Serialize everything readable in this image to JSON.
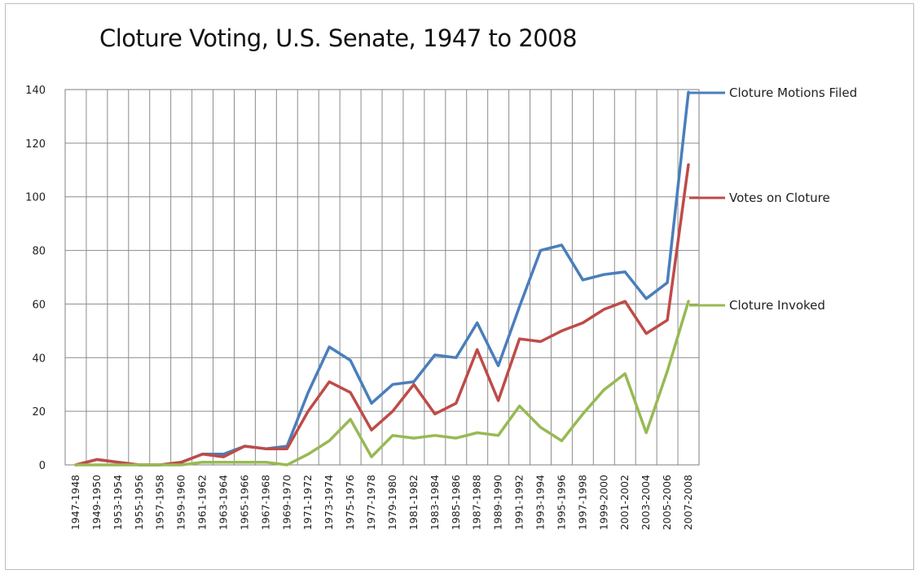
{
  "chart_data": {
    "type": "line",
    "title": "Cloture Voting, U.S. Senate, 1947 to 2008",
    "xlabel": "",
    "ylabel": "",
    "ylim": [
      0,
      140
    ],
    "yticks": [
      0,
      20,
      40,
      60,
      80,
      100,
      120,
      140
    ],
    "grid": true,
    "legend_position": "right",
    "categories": [
      "1947-1948",
      "1949-1950",
      "1953-1954",
      "1955-1956",
      "1957-1958",
      "1959-1960",
      "1961-1962",
      "1963-1964",
      "1965-1966",
      "1967-1968",
      "1969-1970",
      "1971-1972",
      "1973-1974",
      "1975-1976",
      "1977-1978",
      "1979-1980",
      "1981-1982",
      "1983-1984",
      "1985-1986",
      "1987-1988",
      "1989-1990",
      "1991-1992",
      "1993-1994",
      "1995-1996",
      "1997-1998",
      "1999-2000",
      "2001-2002",
      "2003-2004",
      "2005-2006",
      "2007-2008"
    ],
    "series": [
      {
        "name": "Cloture Motions Filed",
        "color": "#4a7ebb",
        "values": [
          0,
          2,
          1,
          0,
          0,
          1,
          4,
          4,
          7,
          6,
          7,
          27,
          44,
          39,
          23,
          30,
          31,
          41,
          40,
          53,
          37,
          59,
          80,
          82,
          69,
          71,
          72,
          62,
          68,
          139
        ]
      },
      {
        "name": "Votes on Cloture",
        "color": "#be4b48",
        "values": [
          0,
          2,
          1,
          0,
          0,
          1,
          4,
          3,
          7,
          6,
          6,
          20,
          31,
          27,
          13,
          20,
          30,
          19,
          23,
          43,
          24,
          47,
          46,
          50,
          53,
          58,
          61,
          49,
          54,
          112
        ]
      },
      {
        "name": "Cloture Invoked",
        "color": "#98b954",
        "values": [
          0,
          0,
          0,
          0,
          0,
          0,
          1,
          1,
          1,
          1,
          0,
          4,
          9,
          17,
          3,
          11,
          10,
          11,
          10,
          12,
          11,
          22,
          14,
          9,
          19,
          28,
          34,
          12,
          35,
          61
        ]
      }
    ]
  }
}
